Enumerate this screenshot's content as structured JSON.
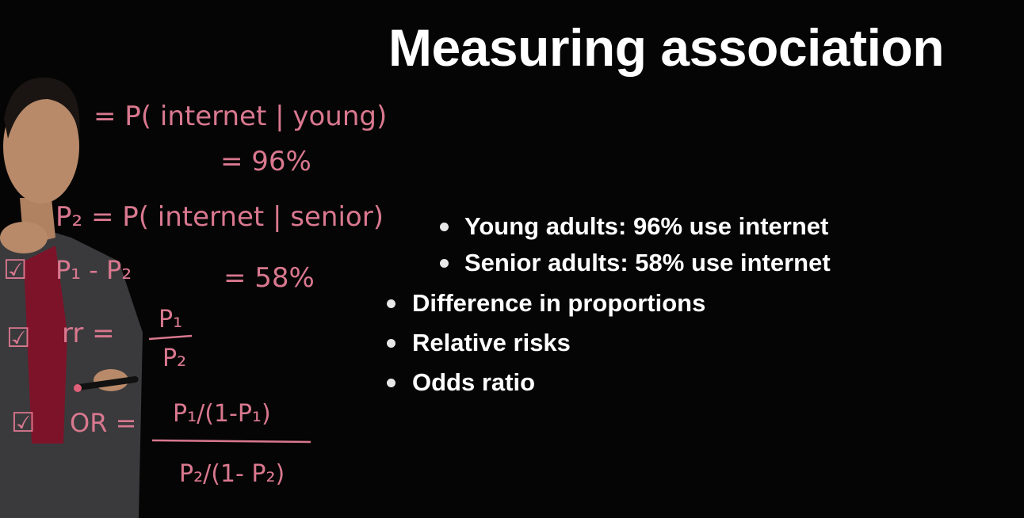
{
  "title": "Measuring association",
  "bullets": [
    {
      "text": "Young adults: 96% use internet",
      "level": 2
    },
    {
      "text": "Senior adults: 58% use internet",
      "level": 2
    },
    {
      "text": "Difference in proportions",
      "level": 1
    },
    {
      "text": "Relative risks",
      "level": 1
    },
    {
      "text": "Odds ratio",
      "level": 1
    }
  ],
  "handwriting": {
    "line1": "= P( internet | young)",
    "line2": "= 96%",
    "line3": "P₂ = P( internet | senior)",
    "line4": "P₁ - P₂",
    "line5": "= 58%",
    "line6_label": "rr =",
    "line6_num": "P₁",
    "line6_den": "P₂",
    "line7_label": "OR =",
    "line7_num": "P₁/(1-P₁)",
    "line7_den": "P₂/(1- P₂)",
    "check": "☑"
  },
  "colors": {
    "background": "#050505",
    "text": "#ffffff",
    "ink": "#d9788f",
    "jacket": "#3a3a3c",
    "shirt": "#8a1530",
    "skin": "#b88a6a"
  }
}
